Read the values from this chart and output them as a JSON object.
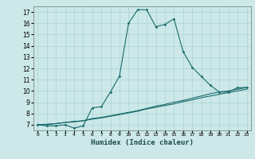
{
  "title": "",
  "xlabel": "Humidex (Indice chaleur)",
  "bg_color": "#cce8e8",
  "line_color": "#1a6b6b",
  "grid_color": "#aad4d4",
  "x_values": [
    0,
    1,
    2,
    3,
    4,
    5,
    6,
    7,
    8,
    9,
    10,
    11,
    12,
    13,
    14,
    15,
    16,
    17,
    18,
    19,
    20,
    21,
    22,
    23
  ],
  "line1_y": [
    7.0,
    6.9,
    6.9,
    7.0,
    6.7,
    6.9,
    8.5,
    8.6,
    9.9,
    11.3,
    16.0,
    17.2,
    17.2,
    15.7,
    15.9,
    16.4,
    13.5,
    12.1,
    11.3,
    10.5,
    9.9,
    9.9,
    10.3,
    10.3
  ],
  "line2_y": [
    7.0,
    7.0,
    7.1,
    7.2,
    7.3,
    7.35,
    7.5,
    7.6,
    7.75,
    7.9,
    8.05,
    8.2,
    8.4,
    8.55,
    8.7,
    8.85,
    9.05,
    9.2,
    9.4,
    9.55,
    9.7,
    9.85,
    10.0,
    10.15
  ],
  "line3_y": [
    7.0,
    7.05,
    7.1,
    7.2,
    7.25,
    7.35,
    7.55,
    7.65,
    7.8,
    7.95,
    8.1,
    8.25,
    8.45,
    8.65,
    8.8,
    9.0,
    9.15,
    9.35,
    9.55,
    9.75,
    9.9,
    10.0,
    10.15,
    10.3
  ],
  "ylim": [
    6.5,
    17.5
  ],
  "yticks": [
    7,
    8,
    9,
    10,
    11,
    12,
    13,
    14,
    15,
    16,
    17
  ],
  "xtick_labels": [
    "0",
    "1",
    "2",
    "3",
    "4",
    "5",
    "6",
    "7",
    "8",
    "9",
    "10",
    "11",
    "12",
    "13",
    "14",
    "15",
    "16",
    "17",
    "18",
    "19",
    "20",
    "21",
    "22",
    "23"
  ]
}
